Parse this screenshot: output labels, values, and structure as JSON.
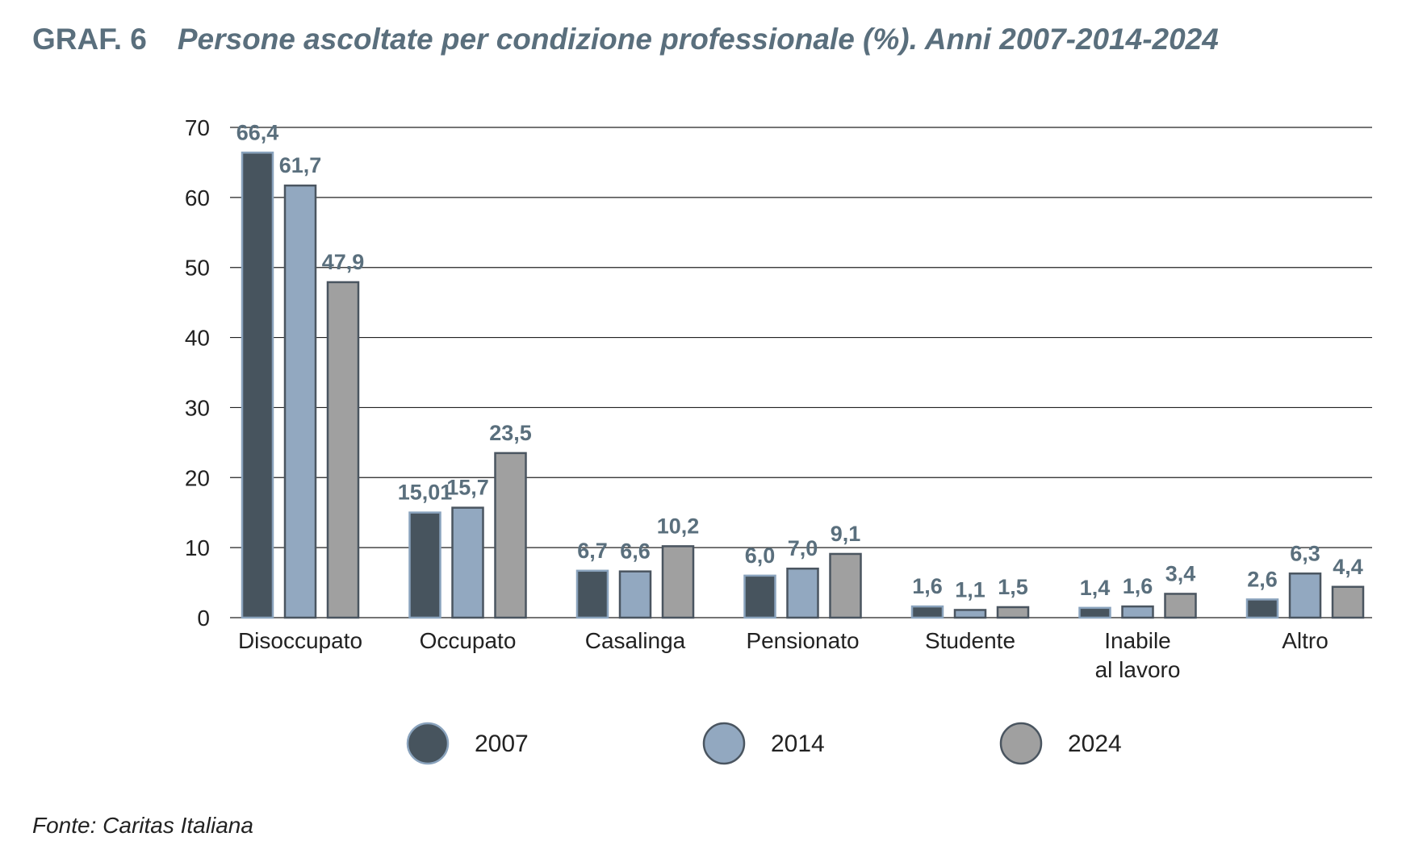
{
  "header": {
    "figure_number": "GRAF. 6",
    "title": "Persone ascoltate per condizione professionale (%). Anni 2007-2014-2024"
  },
  "footer": {
    "source": "Fonte: Caritas Italiana"
  },
  "chart_data": {
    "type": "bar",
    "title": "Persone ascoltate per condizione professionale (%). Anni 2007-2014-2024",
    "xlabel": "",
    "ylabel": "",
    "ylim": [
      0,
      70
    ],
    "yticks": [
      0,
      10,
      20,
      30,
      40,
      50,
      60,
      70
    ],
    "grid": true,
    "legend_position": "bottom",
    "categories": [
      [
        "Disoccupato"
      ],
      [
        "Occupato"
      ],
      [
        "Casalinga"
      ],
      [
        "Pensionato"
      ],
      [
        "Studente"
      ],
      [
        "Inabile",
        "al lavoro"
      ],
      [
        "Altro"
      ]
    ],
    "series": [
      {
        "name": "2007",
        "color": "#47545e",
        "values": [
          66.4,
          15.01,
          6.7,
          6.0,
          1.6,
          1.4,
          2.6
        ],
        "labels": [
          "66,4",
          "15,01",
          "6,7",
          "6,0",
          "1,6",
          "1,4",
          "2,6"
        ]
      },
      {
        "name": "2014",
        "color": "#92a8c0",
        "values": [
          61.7,
          15.7,
          6.6,
          7.0,
          1.1,
          1.6,
          6.3
        ],
        "labels": [
          "61,7",
          "15,7",
          "6,6",
          "7,0",
          "1,1",
          "1,6",
          "6,3"
        ]
      },
      {
        "name": "2024",
        "color": "#a0a0a0",
        "values": [
          47.9,
          23.5,
          10.2,
          9.1,
          1.5,
          3.4,
          4.4
        ],
        "labels": [
          "47,9",
          "23,5",
          "10,2",
          "9,1",
          "1,5",
          "3,4",
          "4,4"
        ]
      }
    ],
    "colors": {
      "value_label": "#5a6f7d",
      "bar_border": "#4a5560",
      "gridline": "#222222",
      "axis_text": "#222222"
    }
  }
}
